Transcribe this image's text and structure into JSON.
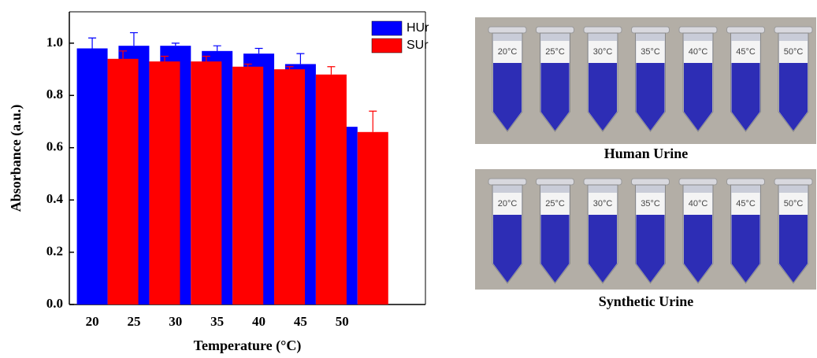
{
  "chart_data": {
    "type": "bar",
    "x_label": "Temperature (°C)",
    "y_label": "Absorbance (a.u.)",
    "x": [
      20,
      25,
      30,
      35,
      40,
      45,
      50
    ],
    "xlim": [
      17.25,
      60
    ],
    "xticks": [
      20,
      25,
      30,
      35,
      40,
      45,
      50
    ],
    "ylim": [
      0,
      1.12
    ],
    "yticks": [
      {
        "value": 0,
        "label": "0.0"
      },
      0.2,
      0.4,
      0.6,
      0.8,
      {
        "value": 1,
        "label": "1.0"
      }
    ],
    "legend": "top-right",
    "series": [
      {
        "name": "HUr",
        "color": "#0000ff",
        "values": [
          0.98,
          0.99,
          0.99,
          0.97,
          0.96,
          0.92,
          0.68
        ],
        "errors": [
          0.04,
          0.05,
          0.01,
          0.02,
          0.02,
          0.04,
          0.07
        ]
      },
      {
        "name": "SUr",
        "color": "#ff0000",
        "values": [
          0.94,
          0.93,
          0.93,
          0.91,
          0.9,
          0.88,
          0.66
        ],
        "errors": [
          0.03,
          0.02,
          0.02,
          0.01,
          0.01,
          0.03,
          0.08
        ]
      }
    ]
  },
  "photos": [
    {
      "caption": "Human Urine",
      "tube_labels": [
        "20°C",
        "25°C",
        "30°C",
        "35°C",
        "40°C",
        "45°C",
        "50°C"
      ]
    },
    {
      "caption": "Synthetic Urine",
      "tube_labels": [
        "20°C",
        "25°C",
        "30°C",
        "35°C",
        "40°C",
        "45°C",
        "50°C"
      ]
    }
  ]
}
